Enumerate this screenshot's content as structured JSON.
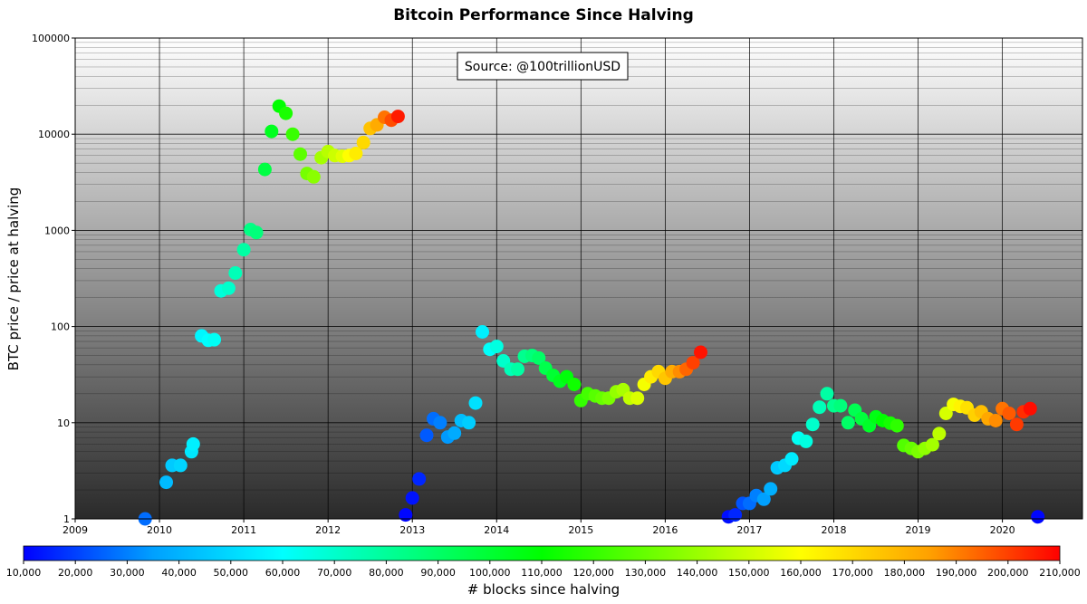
{
  "chart_data": {
    "type": "scatter",
    "title": "Bitcoin Performance Since Halving",
    "ylabel": "BTC price / price at halving",
    "xlabel": "",
    "annotation": "Source: @100trillionUSD",
    "yscale": "log",
    "ylim": [
      1,
      100000
    ],
    "xlim": [
      2009.0,
      2020.95
    ],
    "grid": true,
    "x_ticks": [
      "2009",
      "2010",
      "2011",
      "2012",
      "2013",
      "2014",
      "2015",
      "2016",
      "2017",
      "2018",
      "2019",
      "2020"
    ],
    "y_ticks": [
      "1",
      "10",
      "100",
      "1000",
      "10000",
      "100000"
    ],
    "colorbar": {
      "label": "# blocks since halving",
      "min": 10000,
      "max": 210000,
      "ticks": [
        "10,000",
        "20,000",
        "30,000",
        "40,000",
        "50,000",
        "60,000",
        "70,000",
        "80,000",
        "90,000",
        "100,000",
        "110,000",
        "120,000",
        "130,000",
        "140,000",
        "150,000",
        "160,000",
        "170,000",
        "180,000",
        "190,000",
        "200,000",
        "210,000"
      ],
      "colormap": [
        "#0000ff",
        "#00a0ff",
        "#00ffff",
        "#00ff80",
        "#00ff00",
        "#80ff00",
        "#ffff00",
        "#ffa000",
        "#ff0000"
      ]
    },
    "points": [
      {
        "x": 2009.83,
        "y": 1.0,
        "blocks": 27000
      },
      {
        "x": 2010.08,
        "y": 2.4,
        "blocks": 42000
      },
      {
        "x": 2010.15,
        "y": 3.6,
        "blocks": 46000
      },
      {
        "x": 2010.25,
        "y": 3.6,
        "blocks": 49000
      },
      {
        "x": 2010.38,
        "y": 5.0,
        "blocks": 54000
      },
      {
        "x": 2010.4,
        "y": 6.0,
        "blocks": 56000
      },
      {
        "x": 2010.5,
        "y": 80,
        "blocks": 58000
      },
      {
        "x": 2010.58,
        "y": 72,
        "blocks": 60000
      },
      {
        "x": 2010.65,
        "y": 73,
        "blocks": 62000
      },
      {
        "x": 2010.73,
        "y": 235,
        "blocks": 67000
      },
      {
        "x": 2010.82,
        "y": 250,
        "blocks": 70000
      },
      {
        "x": 2010.9,
        "y": 360,
        "blocks": 74000
      },
      {
        "x": 2011.0,
        "y": 630,
        "blocks": 78000
      },
      {
        "x": 2011.08,
        "y": 1020,
        "blocks": 84000
      },
      {
        "x": 2011.15,
        "y": 950,
        "blocks": 86000
      },
      {
        "x": 2011.25,
        "y": 4300,
        "blocks": 97000
      },
      {
        "x": 2011.33,
        "y": 10700,
        "blocks": 104000
      },
      {
        "x": 2011.42,
        "y": 19600,
        "blocks": 110000
      },
      {
        "x": 2011.5,
        "y": 16500,
        "blocks": 115000
      },
      {
        "x": 2011.58,
        "y": 10000,
        "blocks": 121000
      },
      {
        "x": 2011.67,
        "y": 6200,
        "blocks": 128000
      },
      {
        "x": 2011.75,
        "y": 3900,
        "blocks": 133000
      },
      {
        "x": 2011.83,
        "y": 3600,
        "blocks": 137000
      },
      {
        "x": 2011.92,
        "y": 5700,
        "blocks": 142000
      },
      {
        "x": 2012.0,
        "y": 6600,
        "blocks": 146000
      },
      {
        "x": 2012.08,
        "y": 6000,
        "blocks": 150000
      },
      {
        "x": 2012.17,
        "y": 5900,
        "blocks": 154000
      },
      {
        "x": 2012.25,
        "y": 6000,
        "blocks": 160000
      },
      {
        "x": 2012.33,
        "y": 6300,
        "blocks": 165000
      },
      {
        "x": 2012.42,
        "y": 8200,
        "blocks": 170000
      },
      {
        "x": 2012.5,
        "y": 11500,
        "blocks": 176000
      },
      {
        "x": 2012.58,
        "y": 12500,
        "blocks": 182000
      },
      {
        "x": 2012.67,
        "y": 15000,
        "blocks": 192000
      },
      {
        "x": 2012.75,
        "y": 14000,
        "blocks": 198000
      },
      {
        "x": 2012.83,
        "y": 15300,
        "blocks": 206000
      },
      {
        "x": 2012.92,
        "y": 1.1,
        "blocks": 11000
      },
      {
        "x": 2013.0,
        "y": 1.65,
        "blocks": 13000
      },
      {
        "x": 2013.08,
        "y": 2.6,
        "blocks": 16000
      },
      {
        "x": 2013.17,
        "y": 7.4,
        "blocks": 24000
      },
      {
        "x": 2013.25,
        "y": 11.0,
        "blocks": 27000
      },
      {
        "x": 2013.33,
        "y": 10.0,
        "blocks": 30000
      },
      {
        "x": 2013.42,
        "y": 7.1,
        "blocks": 34000
      },
      {
        "x": 2013.5,
        "y": 7.8,
        "blocks": 38000
      },
      {
        "x": 2013.58,
        "y": 10.5,
        "blocks": 43000
      },
      {
        "x": 2013.67,
        "y": 10.0,
        "blocks": 47000
      },
      {
        "x": 2013.75,
        "y": 16.0,
        "blocks": 52000
      },
      {
        "x": 2013.83,
        "y": 88,
        "blocks": 56000
      },
      {
        "x": 2013.92,
        "y": 58,
        "blocks": 61000
      },
      {
        "x": 2014.0,
        "y": 62,
        "blocks": 66000
      },
      {
        "x": 2014.08,
        "y": 44,
        "blocks": 70000
      },
      {
        "x": 2014.17,
        "y": 36,
        "blocks": 74000
      },
      {
        "x": 2014.25,
        "y": 36,
        "blocks": 78000
      },
      {
        "x": 2014.33,
        "y": 49,
        "blocks": 82000
      },
      {
        "x": 2014.42,
        "y": 50,
        "blocks": 86000
      },
      {
        "x": 2014.5,
        "y": 47,
        "blocks": 90000
      },
      {
        "x": 2014.58,
        "y": 37,
        "blocks": 95000
      },
      {
        "x": 2014.67,
        "y": 31,
        "blocks": 100000
      },
      {
        "x": 2014.75,
        "y": 27,
        "blocks": 104000
      },
      {
        "x": 2014.83,
        "y": 30,
        "blocks": 108000
      },
      {
        "x": 2014.92,
        "y": 25,
        "blocks": 113000
      },
      {
        "x": 2015.0,
        "y": 17,
        "blocks": 120000
      },
      {
        "x": 2015.08,
        "y": 20,
        "blocks": 123000
      },
      {
        "x": 2015.17,
        "y": 19,
        "blocks": 127000
      },
      {
        "x": 2015.25,
        "y": 18,
        "blocks": 130000
      },
      {
        "x": 2015.33,
        "y": 18,
        "blocks": 134000
      },
      {
        "x": 2015.42,
        "y": 21,
        "blocks": 139000
      },
      {
        "x": 2015.5,
        "y": 22,
        "blocks": 143000
      },
      {
        "x": 2015.58,
        "y": 18,
        "blocks": 148000
      },
      {
        "x": 2015.67,
        "y": 18,
        "blocks": 153000
      },
      {
        "x": 2015.75,
        "y": 25,
        "blocks": 158000
      },
      {
        "x": 2015.83,
        "y": 30,
        "blocks": 165000
      },
      {
        "x": 2015.92,
        "y": 34,
        "blocks": 170000
      },
      {
        "x": 2016.0,
        "y": 29,
        "blocks": 175000
      },
      {
        "x": 2016.08,
        "y": 34,
        "blocks": 182000
      },
      {
        "x": 2016.17,
        "y": 34,
        "blocks": 188000
      },
      {
        "x": 2016.25,
        "y": 36,
        "blocks": 194000
      },
      {
        "x": 2016.33,
        "y": 42,
        "blocks": 200000
      },
      {
        "x": 2016.42,
        "y": 54,
        "blocks": 207000
      },
      {
        "x": 2016.75,
        "y": 1.05,
        "blocks": 12000
      },
      {
        "x": 2016.83,
        "y": 1.1,
        "blocks": 16000
      },
      {
        "x": 2016.92,
        "y": 1.45,
        "blocks": 23000
      },
      {
        "x": 2017.0,
        "y": 1.45,
        "blocks": 27000
      },
      {
        "x": 2017.08,
        "y": 1.75,
        "blocks": 30000
      },
      {
        "x": 2017.17,
        "y": 1.6,
        "blocks": 35000
      },
      {
        "x": 2017.25,
        "y": 2.05,
        "blocks": 39000
      },
      {
        "x": 2017.33,
        "y": 3.4,
        "blocks": 46000
      },
      {
        "x": 2017.42,
        "y": 3.6,
        "blocks": 50000
      },
      {
        "x": 2017.5,
        "y": 4.2,
        "blocks": 55000
      },
      {
        "x": 2017.58,
        "y": 6.9,
        "blocks": 62000
      },
      {
        "x": 2017.67,
        "y": 6.4,
        "blocks": 66000
      },
      {
        "x": 2017.75,
        "y": 9.6,
        "blocks": 70000
      },
      {
        "x": 2017.83,
        "y": 14.5,
        "blocks": 74000
      },
      {
        "x": 2017.92,
        "y": 20.0,
        "blocks": 78000
      },
      {
        "x": 2018.0,
        "y": 15.0,
        "blocks": 82000
      },
      {
        "x": 2018.08,
        "y": 15.0,
        "blocks": 86000
      },
      {
        "x": 2018.17,
        "y": 10.0,
        "blocks": 90000
      },
      {
        "x": 2018.25,
        "y": 13.5,
        "blocks": 94000
      },
      {
        "x": 2018.33,
        "y": 11.0,
        "blocks": 98000
      },
      {
        "x": 2018.42,
        "y": 9.3,
        "blocks": 102000
      },
      {
        "x": 2018.5,
        "y": 11.5,
        "blocks": 106000
      },
      {
        "x": 2018.58,
        "y": 10.5,
        "blocks": 110000
      },
      {
        "x": 2018.67,
        "y": 9.9,
        "blocks": 114000
      },
      {
        "x": 2018.75,
        "y": 9.3,
        "blocks": 119000
      },
      {
        "x": 2018.83,
        "y": 5.8,
        "blocks": 126000
      },
      {
        "x": 2018.92,
        "y": 5.4,
        "blocks": 130000
      },
      {
        "x": 2019.0,
        "y": 5.0,
        "blocks": 134000
      },
      {
        "x": 2019.08,
        "y": 5.4,
        "blocks": 138000
      },
      {
        "x": 2019.17,
        "y": 5.9,
        "blocks": 142000
      },
      {
        "x": 2019.25,
        "y": 7.7,
        "blocks": 147000
      },
      {
        "x": 2019.33,
        "y": 12.5,
        "blocks": 152000
      },
      {
        "x": 2019.42,
        "y": 15.5,
        "blocks": 158000
      },
      {
        "x": 2019.5,
        "y": 14.8,
        "blocks": 163000
      },
      {
        "x": 2019.58,
        "y": 14.3,
        "blocks": 168000
      },
      {
        "x": 2019.67,
        "y": 12.0,
        "blocks": 172000
      },
      {
        "x": 2019.75,
        "y": 13.0,
        "blocks": 177000
      },
      {
        "x": 2019.83,
        "y": 11.0,
        "blocks": 183000
      },
      {
        "x": 2019.92,
        "y": 10.5,
        "blocks": 188000
      },
      {
        "x": 2020.0,
        "y": 14.0,
        "blocks": 192000
      },
      {
        "x": 2020.08,
        "y": 12.5,
        "blocks": 196000
      },
      {
        "x": 2020.17,
        "y": 9.6,
        "blocks": 201000
      },
      {
        "x": 2020.25,
        "y": 13.0,
        "blocks": 203000
      },
      {
        "x": 2020.33,
        "y": 14.0,
        "blocks": 208000
      },
      {
        "x": 2020.42,
        "y": 1.05,
        "blocks": 11000
      }
    ]
  }
}
